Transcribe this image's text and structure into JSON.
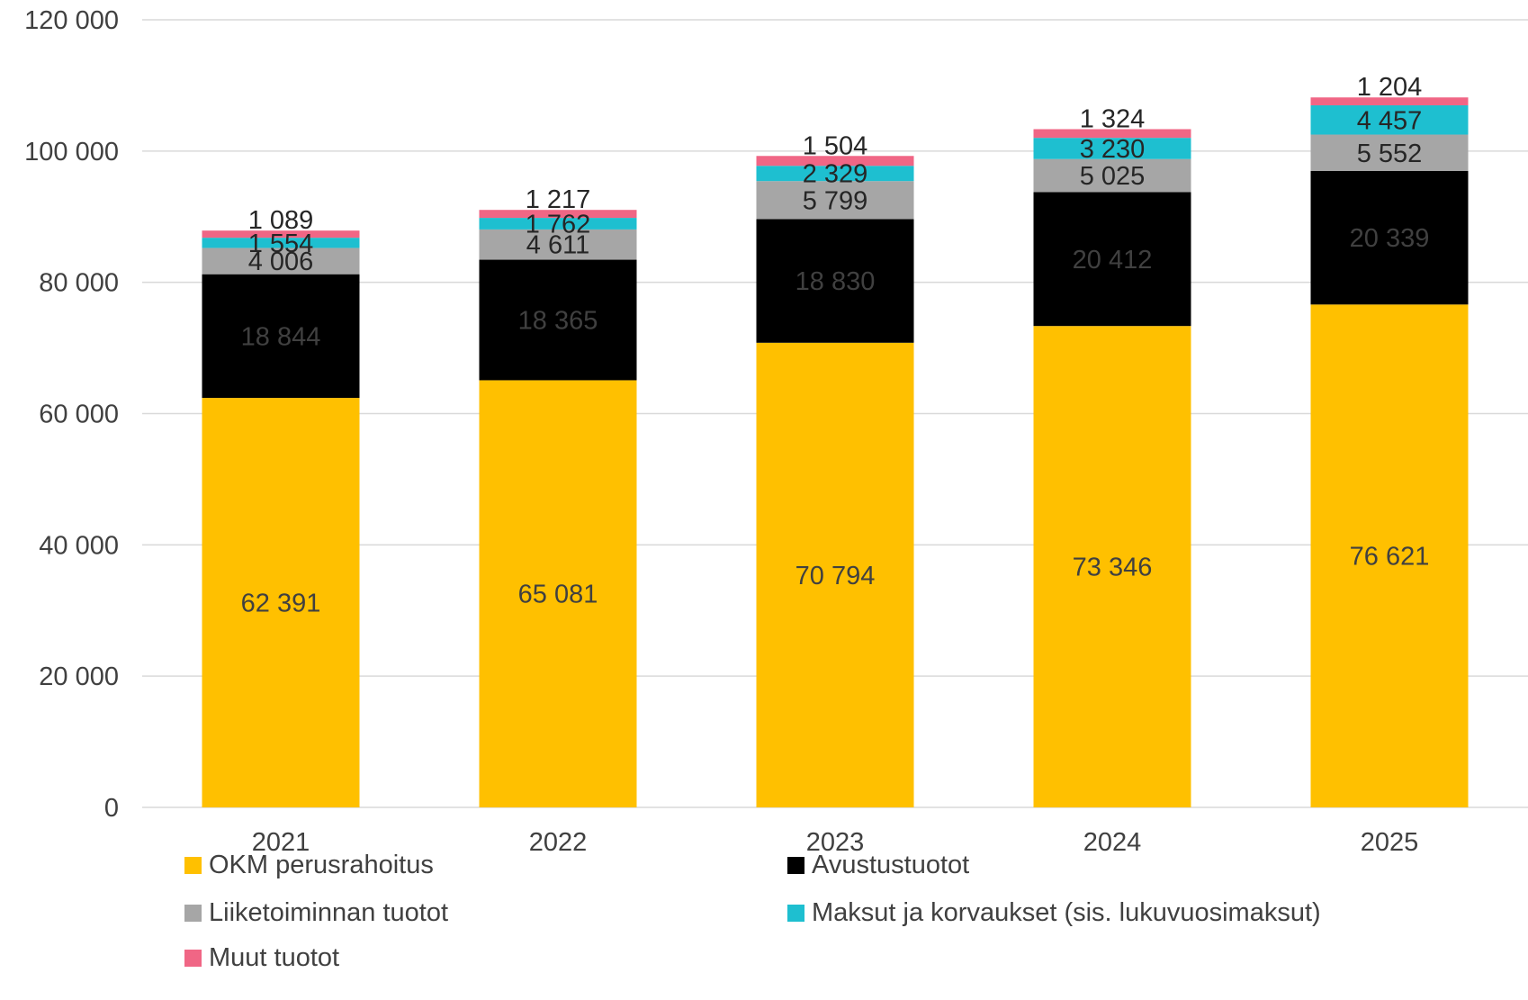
{
  "chart_data": {
    "type": "bar",
    "stacked": true,
    "title": "",
    "xlabel": "",
    "ylabel": "",
    "categories": [
      "2021",
      "2022",
      "2023",
      "2024",
      "2025"
    ],
    "ylim": [
      0,
      120000
    ],
    "yticks": [
      0,
      20000,
      40000,
      60000,
      80000,
      100000,
      120000
    ],
    "ytick_labels": [
      "0",
      "20 000",
      "40 000",
      "60 000",
      "80 000",
      "100 000",
      "120 000"
    ],
    "grid": true,
    "legend_position": "bottom",
    "series": [
      {
        "name": "OKM perusrahoitus",
        "color": "#FFC000",
        "values": [
          62391,
          65081,
          70794,
          73346,
          76621
        ],
        "labels": [
          "62 391",
          "65 081",
          "70 794",
          "73 346",
          "76 621"
        ],
        "label_color": "#404040"
      },
      {
        "name": "Avustustuotot",
        "color": "#000000",
        "values": [
          18844,
          18365,
          18830,
          20412,
          20339
        ],
        "labels": [
          "18 844",
          "18 365",
          "18 830",
          "20 412",
          "20 339"
        ],
        "label_color": "#404040"
      },
      {
        "name": "Liiketoiminnan tuotot",
        "color": "#A6A6A6",
        "values": [
          4006,
          4611,
          5799,
          5025,
          5552
        ],
        "labels": [
          "4 006",
          "4 611",
          "5 799",
          "5 025",
          "5 552"
        ],
        "label_color": "#262626"
      },
      {
        "name": "Maksut ja korvaukset (sis. lukuvuosimaksut)",
        "color": "#1EBFD0",
        "values": [
          1554,
          1762,
          2329,
          3230,
          4457
        ],
        "labels": [
          "1 554",
          "1 762",
          "2 329",
          "3 230",
          "4 457"
        ],
        "label_color": "#262626"
      },
      {
        "name": "Muut tuotot",
        "color": "#F06685",
        "values": [
          1089,
          1217,
          1504,
          1324,
          1204
        ],
        "labels": [
          "1 089",
          "1 217",
          "1 504",
          "1 324",
          "1 204"
        ],
        "label_color": "#262626"
      }
    ]
  }
}
